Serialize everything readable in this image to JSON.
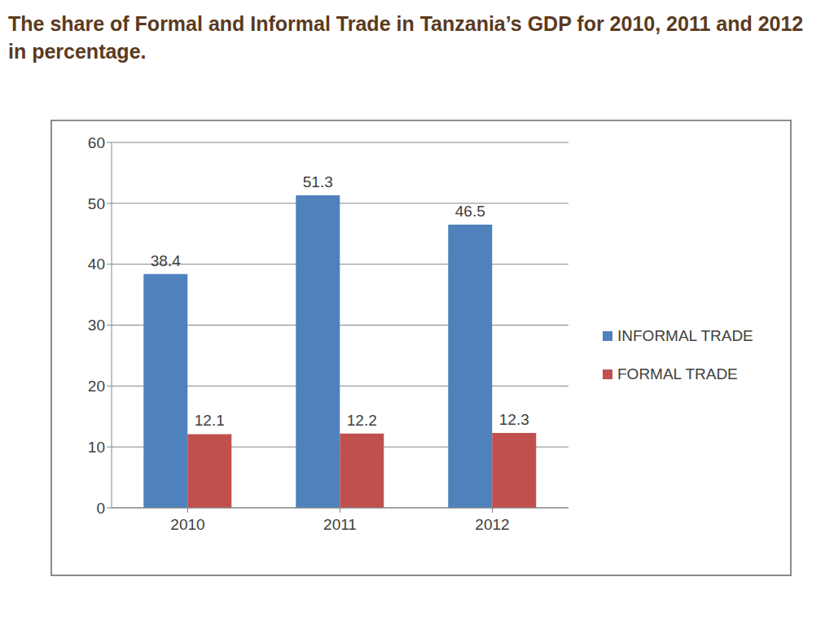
{
  "chart_data": {
    "type": "bar",
    "title": "The share of Formal and Informal Trade in Tanzania’s GDP for 2010, 2011 and 2012 in percentage.",
    "categories": [
      "2010",
      "2011",
      "2012"
    ],
    "series": [
      {
        "name": "INFORMAL TRADE",
        "color": "#4f81bd",
        "values": [
          38.4,
          51.3,
          46.5
        ]
      },
      {
        "name": "FORMAL TRADE",
        "color": "#c0504d",
        "values": [
          12.1,
          12.2,
          12.3
        ]
      }
    ],
    "ylim": [
      0,
      60
    ],
    "yticks": [
      0,
      10,
      20,
      30,
      40,
      50,
      60
    ],
    "grid": true,
    "legend": "right",
    "data_labels": true
  }
}
